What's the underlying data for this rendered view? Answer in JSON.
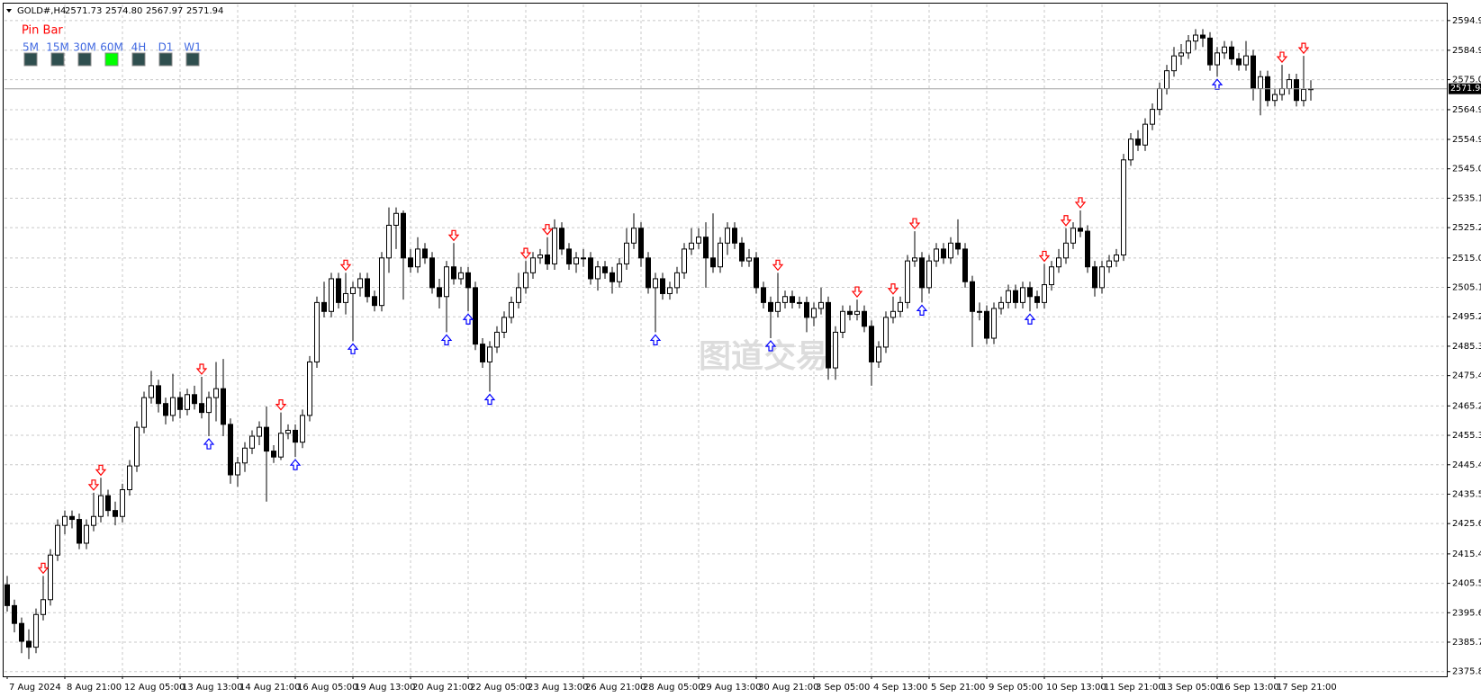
{
  "header": {
    "symbol": "GOLD#,H4",
    "ohlc": [
      "2571.73",
      "2574.80",
      "2567.97",
      "2571.94"
    ]
  },
  "indicator": {
    "title": "Pin Bar",
    "timeframes": [
      "5M",
      "15M",
      "30M",
      "60M",
      "4H",
      "D1",
      "W1"
    ],
    "active_index": 3,
    "active_color": "#00ff00",
    "idle_color": "#2f4f4f"
  },
  "watermark": "图道交易",
  "chart_data": {
    "type": "candlestick",
    "categories": [
      "7 Aug 2024",
      null,
      null,
      null,
      null,
      null,
      null,
      null,
      "8 Aug 21:00",
      null,
      null,
      null,
      null,
      null,
      null,
      null,
      "12 Aug 05:00",
      null,
      null,
      null,
      null,
      null,
      null,
      null,
      "13 Aug 13:00",
      null,
      null,
      null,
      null,
      null,
      null,
      null,
      "14 Aug 21:00",
      null,
      null,
      null,
      null,
      null,
      null,
      null,
      "16 Aug 05:00",
      null,
      null,
      null,
      null,
      null,
      null,
      null,
      "19 Aug 13:00",
      null,
      null,
      null,
      null,
      null,
      null,
      null,
      "20 Aug 21:00",
      null,
      null,
      null,
      null,
      null,
      null,
      null,
      "22 Aug 05:00",
      null,
      null,
      null,
      null,
      null,
      null,
      null,
      "23 Aug 13:00",
      null,
      null,
      null,
      null,
      null,
      null,
      null,
      "26 Aug 21:00",
      null,
      null,
      null,
      null,
      null,
      null,
      null,
      "28 Aug 05:00",
      null,
      null,
      null,
      null,
      null,
      null,
      null,
      "29 Aug 13:00",
      null,
      null,
      null,
      null,
      null,
      null,
      null,
      "30 Aug 21:00",
      null,
      null,
      null,
      null,
      null,
      null,
      null,
      "3 Sep 05:00",
      null,
      null,
      null,
      null,
      null,
      null,
      null,
      "4 Sep 13:00",
      null,
      null,
      null,
      null,
      null,
      null,
      null,
      "5 Sep 21:00",
      null,
      null,
      null,
      null,
      null,
      null,
      null,
      "9 Sep 05:00",
      null,
      null,
      null,
      null,
      null,
      null,
      null,
      "10 Sep 13:00",
      null,
      null,
      null,
      null,
      null,
      null,
      null,
      "11 Sep 21:00",
      null,
      null,
      null,
      null,
      null,
      null,
      null,
      "13 Sep 05:00",
      null,
      null,
      null,
      null,
      null,
      null,
      null,
      "16 Sep 13:00",
      null,
      null,
      null,
      null,
      null,
      null,
      null,
      "17 Sep 21:00",
      null,
      null,
      null,
      null,
      null
    ],
    "open": [
      2405,
      2398,
      2392,
      2386,
      2384,
      2395,
      2400,
      2415,
      2425,
      2428,
      2427,
      2419,
      2425,
      2428,
      2435,
      2430,
      2428,
      2437,
      2445,
      2458,
      2468,
      2472,
      2466,
      2462,
      2468,
      2464,
      2469,
      2466,
      2463,
      2468,
      2471,
      2459,
      2442,
      2446,
      2451,
      2455,
      2458,
      2450,
      2448,
      2456,
      2457,
      2453,
      2462,
      2480,
      2500,
      2497,
      2508,
      2500,
      2503,
      2505,
      2508,
      2502,
      2499,
      2515,
      2526,
      2530,
      2515,
      2512,
      2518,
      2515,
      2505,
      2502,
      2512,
      2508,
      2510,
      2505,
      2486,
      2480,
      2485,
      2490,
      2495,
      2500,
      2505,
      2510,
      2515,
      2516,
      2513,
      2525,
      2518,
      2513,
      2515,
      2515,
      2508,
      2512,
      2510,
      2507,
      2513,
      2520,
      2525,
      2515,
      2505,
      2508,
      2503,
      2505,
      2510,
      2518,
      2520,
      2522,
      2515,
      2512,
      2520,
      2525,
      2520,
      2514,
      2515,
      2505,
      2500,
      2497,
      2500,
      2502,
      2500,
      2500,
      2495,
      2498,
      2500,
      2478,
      2490,
      2497,
      2496,
      2497,
      2492,
      2480,
      2485,
      2495,
      2497,
      2500,
      2514,
      2515,
      2505,
      2514,
      2518,
      2515,
      2520,
      2518,
      2507,
      2497,
      2497,
      2488,
      2498,
      2500,
      2504,
      2500,
      2505,
      2502,
      2500,
      2506,
      2512,
      2515,
      2520,
      2525,
      2524,
      2512,
      2505,
      2512,
      2514,
      2516,
      2548,
      2555,
      2553,
      2560,
      2565,
      2572,
      2578,
      2583,
      2584,
      2588,
      2590,
      2589,
      2580,
      2584,
      2586,
      2582,
      2580,
      2583,
      2572,
      2576,
      2568,
      2570,
      2572,
      2575,
      2568,
      2571.73
    ],
    "high": [
      2408,
      2400,
      2394,
      2390,
      2397,
      2408,
      2417,
      2427,
      2430,
      2430,
      2429,
      2427,
      2436,
      2441,
      2437,
      2433,
      2439,
      2447,
      2460,
      2470,
      2477,
      2474,
      2468,
      2476,
      2470,
      2471,
      2472,
      2475,
      2470,
      2480,
      2481,
      2461,
      2448,
      2453,
      2457,
      2460,
      2465,
      2452,
      2463,
      2459,
      2459,
      2464,
      2482,
      2502,
      2507,
      2510,
      2510,
      2510,
      2507,
      2510,
      2510,
      2504,
      2517,
      2532,
      2532,
      2531,
      2518,
      2522,
      2520,
      2517,
      2508,
      2514,
      2520,
      2512,
      2512,
      2507,
      2488,
      2487,
      2492,
      2497,
      2502,
      2510,
      2514,
      2517,
      2518,
      2522,
      2528,
      2527,
      2520,
      2517,
      2518,
      2517,
      2514,
      2514,
      2512,
      2515,
      2525,
      2530,
      2527,
      2517,
      2510,
      2510,
      2507,
      2512,
      2520,
      2525,
      2525,
      2527,
      2530,
      2522,
      2527,
      2527,
      2522,
      2518,
      2517,
      2507,
      2502,
      2510,
      2504,
      2504,
      2502,
      2502,
      2500,
      2505,
      2502,
      2492,
      2499,
      2499,
      2501,
      2499,
      2494,
      2487,
      2497,
      2502,
      2502,
      2516,
      2524,
      2517,
      2516,
      2520,
      2520,
      2522,
      2528,
      2520,
      2509,
      2500,
      2499,
      2500,
      2502,
      2506,
      2506,
      2507,
      2507,
      2504,
      2513,
      2514,
      2518,
      2525,
      2527,
      2531,
      2526,
      2514,
      2514,
      2516,
      2518,
      2550,
      2557,
      2558,
      2562,
      2567,
      2574,
      2580,
      2586,
      2587,
      2590,
      2592,
      2592,
      2591,
      2586,
      2588,
      2588,
      2584,
      2588,
      2585,
      2578,
      2578,
      2572,
      2580,
      2577,
      2577,
      2583,
      2574.8
    ],
    "low": [
      2396,
      2389,
      2382,
      2380,
      2382,
      2393,
      2398,
      2413,
      2422,
      2424,
      2417,
      2417,
      2423,
      2426,
      2428,
      2425,
      2426,
      2435,
      2443,
      2456,
      2466,
      2463,
      2459,
      2460,
      2461,
      2462,
      2464,
      2461,
      2455,
      2460,
      2455,
      2439,
      2438,
      2443,
      2449,
      2452,
      2433,
      2446,
      2447,
      2454,
      2448,
      2451,
      2460,
      2478,
      2495,
      2495,
      2498,
      2496,
      2487,
      2502,
      2500,
      2497,
      2497,
      2510,
      2518,
      2501,
      2510,
      2510,
      2513,
      2503,
      2498,
      2490,
      2506,
      2506,
      2497,
      2484,
      2478,
      2470,
      2483,
      2488,
      2493,
      2498,
      2503,
      2508,
      2513,
      2511,
      2511,
      2516,
      2511,
      2510,
      2512,
      2506,
      2504,
      2508,
      2503,
      2505,
      2511,
      2518,
      2512,
      2503,
      2490,
      2501,
      2501,
      2503,
      2508,
      2516,
      2518,
      2505,
      2510,
      2510,
      2516,
      2518,
      2512,
      2512,
      2503,
      2498,
      2488,
      2495,
      2498,
      2498,
      2498,
      2490,
      2492,
      2496,
      2474,
      2474,
      2488,
      2494,
      2494,
      2490,
      2472,
      2478,
      2483,
      2493,
      2495,
      2498,
      2512,
      2500,
      2503,
      2512,
      2513,
      2513,
      2516,
      2505,
      2485,
      2494,
      2486,
      2486,
      2496,
      2498,
      2498,
      2498,
      2497,
      2498,
      2498,
      2504,
      2510,
      2513,
      2518,
      2522,
      2510,
      2502,
      2503,
      2510,
      2512,
      2514,
      2546,
      2551,
      2551,
      2558,
      2563,
      2570,
      2576,
      2580,
      2582,
      2585,
      2586,
      2578,
      2576,
      2582,
      2580,
      2578,
      2578,
      2568,
      2563,
      2566,
      2566,
      2568,
      2570,
      2566,
      2566,
      2567.97
    ],
    "close": [
      2398,
      2392,
      2386,
      2384,
      2395,
      2400,
      2415,
      2425,
      2428,
      2427,
      2419,
      2425,
      2428,
      2435,
      2430,
      2428,
      2437,
      2445,
      2458,
      2468,
      2472,
      2466,
      2462,
      2468,
      2464,
      2469,
      2466,
      2463,
      2468,
      2471,
      2459,
      2442,
      2446,
      2451,
      2455,
      2458,
      2450,
      2448,
      2456,
      2457,
      2453,
      2462,
      2480,
      2500,
      2497,
      2508,
      2500,
      2503,
      2505,
      2508,
      2502,
      2499,
      2515,
      2526,
      2530,
      2515,
      2512,
      2518,
      2515,
      2505,
      2502,
      2512,
      2508,
      2510,
      2505,
      2486,
      2480,
      2485,
      2490,
      2495,
      2500,
      2505,
      2510,
      2515,
      2516,
      2513,
      2525,
      2518,
      2513,
      2515,
      2515,
      2508,
      2512,
      2510,
      2507,
      2513,
      2520,
      2525,
      2515,
      2505,
      2508,
      2503,
      2505,
      2510,
      2518,
      2520,
      2522,
      2515,
      2512,
      2520,
      2525,
      2520,
      2514,
      2515,
      2505,
      2500,
      2497,
      2500,
      2502,
      2500,
      2500,
      2495,
      2498,
      2500,
      2478,
      2490,
      2497,
      2496,
      2497,
      2492,
      2480,
      2485,
      2495,
      2497,
      2500,
      2514,
      2515,
      2505,
      2514,
      2518,
      2515,
      2520,
      2518,
      2507,
      2497,
      2497,
      2488,
      2498,
      2500,
      2504,
      2500,
      2505,
      2502,
      2500,
      2506,
      2512,
      2515,
      2520,
      2525,
      2524,
      2512,
      2505,
      2512,
      2514,
      2516,
      2548,
      2555,
      2553,
      2560,
      2565,
      2572,
      2578,
      2583,
      2584,
      2588,
      2590,
      2589,
      2580,
      2584,
      2586,
      2582,
      2580,
      2583,
      2572,
      2576,
      2568,
      2570,
      2572,
      2575,
      2568,
      2571.73,
      2571.94
    ],
    "ylim": [
      2374.2,
      2600.3
    ],
    "yticks": [
      {
        "value": 2594.9,
        "label": "2594.90"
      },
      {
        "value": 2584.9,
        "label": "2584.90"
      },
      {
        "value": 2575,
        "label": "2575.00"
      },
      {
        "value": 2564.9,
        "label": "2564.90"
      },
      {
        "value": 2554.9,
        "label": "2554.90"
      },
      {
        "value": 2545,
        "label": "2545.00"
      },
      {
        "value": 2535.1,
        "label": "2535.10"
      },
      {
        "value": 2525.2,
        "label": "2525.20"
      },
      {
        "value": 2515,
        "label": "2515.00"
      },
      {
        "value": 2505.1,
        "label": "2505.10"
      },
      {
        "value": 2495.2,
        "label": "2495.20"
      },
      {
        "value": 2485.3,
        "label": "2485.30"
      },
      {
        "value": 2475.4,
        "label": "2475.40"
      },
      {
        "value": 2465.2,
        "label": "2465.20"
      },
      {
        "value": 2455.3,
        "label": "2455.30"
      },
      {
        "value": 2445.4,
        "label": "2445.40"
      },
      {
        "value": 2435.5,
        "label": "2435.50"
      },
      {
        "value": 2425.6,
        "label": "2425.60"
      },
      {
        "value": 2415.4,
        "label": "2415.40"
      },
      {
        "value": 2405.5,
        "label": "2405.50"
      },
      {
        "value": 2395.6,
        "label": "2395.60"
      },
      {
        "value": 2385.7,
        "label": "2385.70"
      },
      {
        "value": 2375.8,
        "label": "2375.80"
      }
    ],
    "grid": true,
    "up_color": "#ffffff",
    "down_color": "#000000",
    "signals": {
      "bearish": [
        5,
        12,
        13,
        27,
        38,
        47,
        62,
        72,
        75,
        107,
        118,
        123,
        126,
        144,
        147,
        149,
        177,
        180
      ],
      "bullish": [
        28,
        40,
        48,
        61,
        64,
        67,
        90,
        106,
        127,
        142,
        168
      ]
    },
    "bearish_color": "#ff0000",
    "bullish_color": "#0000ff"
  }
}
